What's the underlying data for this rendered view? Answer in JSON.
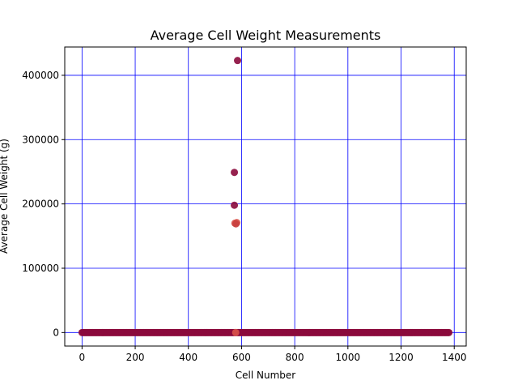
{
  "chart_data": {
    "type": "scatter",
    "title": "Average Cell Weight Measurements",
    "xlabel": "Cell Number",
    "ylabel": "Average Cell Weight (g)",
    "xlim": [
      -65,
      1445
    ],
    "ylim": [
      -21000,
      444000
    ],
    "xticks": [
      0,
      200,
      400,
      600,
      800,
      1000,
      1200,
      1400
    ],
    "yticks": [
      0,
      100000,
      200000,
      300000,
      400000
    ],
    "grid": true,
    "grid_color": "#0000ff",
    "baseline": {
      "x_start": 0,
      "x_end": 1380,
      "x_step": 4,
      "y": 0,
      "color": "#8b0a3c"
    },
    "points": [
      {
        "x": 585,
        "y": 423000,
        "color": "#8b0a3c"
      },
      {
        "x": 573,
        "y": 249000,
        "color": "#8b0a3c"
      },
      {
        "x": 573,
        "y": 198000,
        "color": "#8b0a3c"
      },
      {
        "x": 575,
        "y": 170000,
        "color": "#d9534a"
      },
      {
        "x": 582,
        "y": 171000,
        "color": "#d9534a"
      },
      {
        "x": 579,
        "y": 169000,
        "color": "#c8403f"
      },
      {
        "x": 578,
        "y": 0,
        "color": "#d9534a"
      }
    ]
  }
}
